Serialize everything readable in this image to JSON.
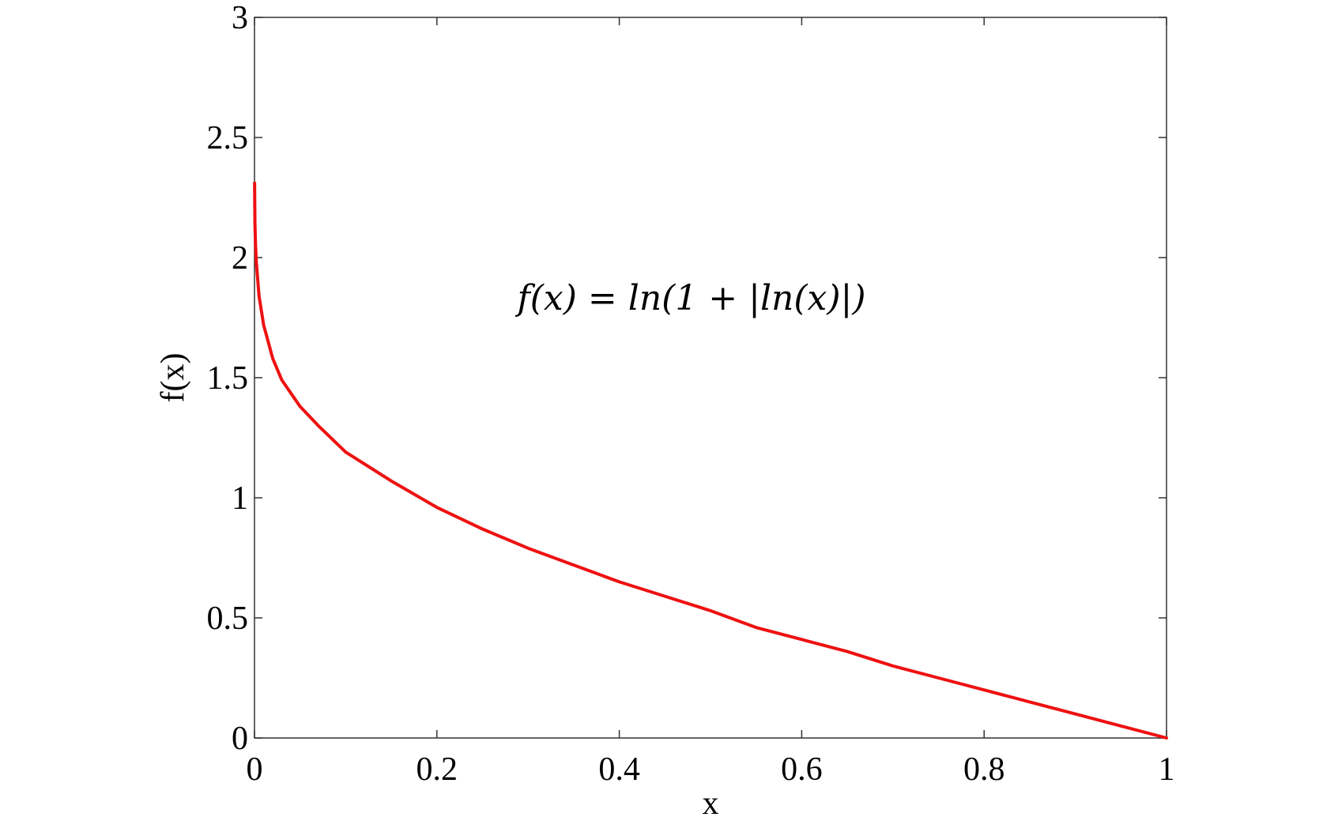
{
  "chart_data": {
    "type": "line",
    "title": "",
    "xlabel": "x",
    "ylabel": "f(x)",
    "xlim": [
      0,
      1
    ],
    "ylim": [
      0,
      3
    ],
    "xticks": [
      0,
      0.2,
      0.4,
      0.6,
      0.8,
      1
    ],
    "xtick_labels": [
      "0",
      "0.2",
      "0.4",
      "0.6",
      "0.8",
      "1"
    ],
    "yticks": [
      0,
      0.5,
      1,
      1.5,
      2,
      2.5,
      3
    ],
    "ytick_labels": [
      "0",
      "0.5",
      "1",
      "1.5",
      "2",
      "2.5",
      "3"
    ],
    "grid": false,
    "annotation": "f(x) = ln(1 + |ln(x)|)",
    "series": [
      {
        "color": "#ee1111",
        "x": [
          0.0001,
          0.0005,
          0.001,
          0.002,
          0.005,
          0.01,
          0.02,
          0.03,
          0.05,
          0.07,
          0.1,
          0.15,
          0.2,
          0.25,
          0.3,
          0.35,
          0.4,
          0.45,
          0.5,
          0.55,
          0.6,
          0.65,
          0.7,
          0.75,
          0.8,
          0.85,
          0.9,
          0.95,
          1.0
        ],
        "y": [
          2.31,
          2.14,
          2.07,
          1.98,
          1.84,
          1.72,
          1.58,
          1.49,
          1.38,
          1.3,
          1.19,
          1.07,
          0.96,
          0.87,
          0.79,
          0.72,
          0.65,
          0.59,
          0.53,
          0.46,
          0.41,
          0.36,
          0.3,
          0.25,
          0.2,
          0.15,
          0.1,
          0.05,
          0.0
        ]
      }
    ]
  }
}
